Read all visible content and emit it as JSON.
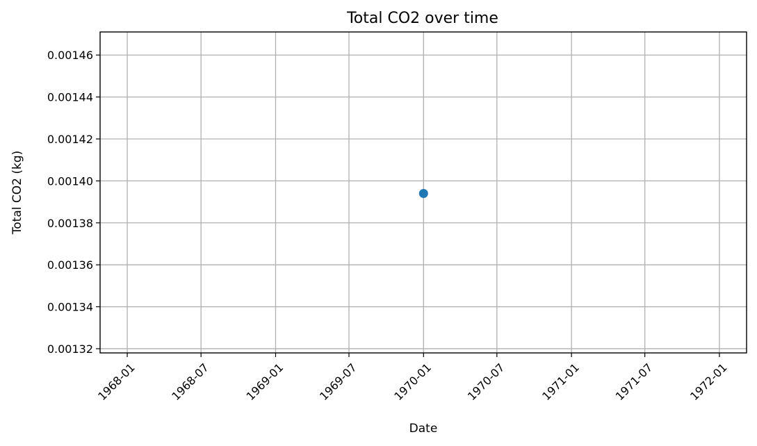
{
  "chart_data": {
    "type": "scatter",
    "title": "Total CO2 over time",
    "xlabel": "Date",
    "ylabel": "Total CO2 (kg)",
    "x_tick_labels": [
      "1968-01",
      "1968-07",
      "1969-01",
      "1969-07",
      "1970-01",
      "1970-07",
      "1971-01",
      "1971-07",
      "1972-01"
    ],
    "x_tick_dates": [
      "1968-01-01",
      "1968-07-01",
      "1969-01-01",
      "1969-07-01",
      "1970-01-01",
      "1970-07-01",
      "1971-01-01",
      "1971-07-01",
      "1972-01-01"
    ],
    "y_ticks": [
      0.00132,
      0.00134,
      0.00136,
      0.00138,
      0.0014,
      0.00142,
      0.00144,
      0.00146
    ],
    "y_tick_labels": [
      "0.00132",
      "0.00134",
      "0.00136",
      "0.00138",
      "0.00140",
      "0.00142",
      "0.00144",
      "0.00146"
    ],
    "xlim": [
      "1967-10-26",
      "1972-03-08"
    ],
    "ylim": [
      0.001318,
      0.001471
    ],
    "grid": true,
    "series": [
      {
        "color": "#1f77b4",
        "marker": "circle",
        "points": [
          {
            "x": "1970-01-01",
            "y": 0.001394
          }
        ]
      }
    ]
  }
}
